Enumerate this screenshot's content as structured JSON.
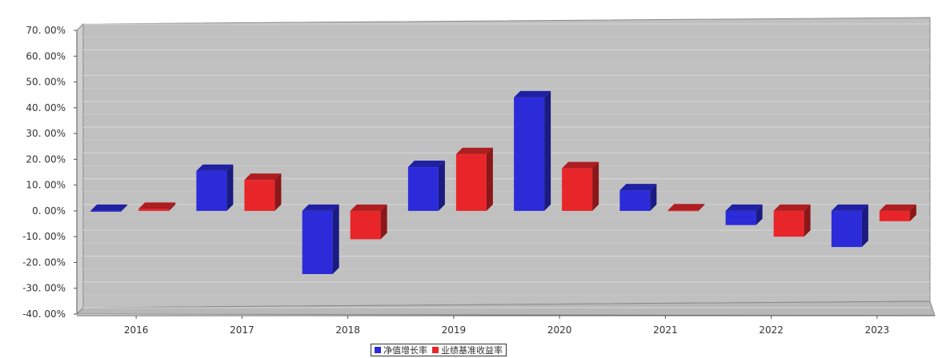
{
  "chart_data": {
    "type": "bar",
    "categories": [
      "2016",
      "2017",
      "2018",
      "2019",
      "2020",
      "2021",
      "2022",
      "2023"
    ],
    "series": [
      {
        "name": "净值增长率",
        "color": "#2b2bd9",
        "values": [
          -0.3,
          15.5,
          -24.5,
          17.0,
          44.0,
          8.0,
          -5.5,
          -14.0
        ]
      },
      {
        "name": "业绩基准收益率",
        "color": "#e8262a",
        "values": [
          0.8,
          12.0,
          -11.0,
          22.0,
          16.5,
          0.2,
          -10.0,
          -4.0
        ]
      }
    ],
    "ylim": [
      -40,
      70
    ],
    "y_ticks": [
      "70. 00%",
      "60. 00%",
      "50. 00%",
      "40. 00%",
      "30. 00%",
      "20. 00%",
      "10. 00%",
      "0. 00%",
      "-10. 00%",
      "-20. 00%",
      "-30. 00%",
      "-40. 00%"
    ],
    "grid": true,
    "legend_position": "bottom",
    "three_d": true,
    "plot_background": "#c0c0c0"
  }
}
